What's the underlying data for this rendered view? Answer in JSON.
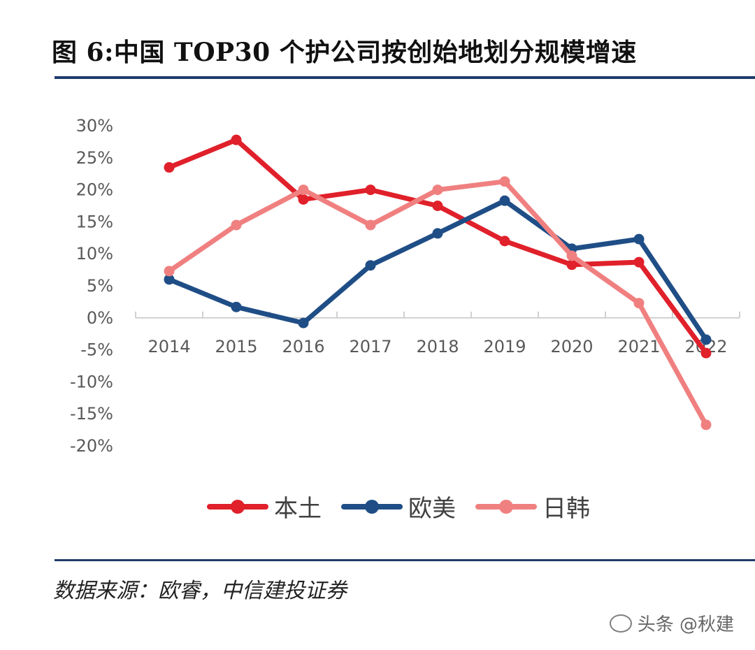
{
  "header": {
    "title": "图 6:中国 TOP30 个护公司按创始地划分规模增速"
  },
  "footer": {
    "source": "数据来源：欧睿，中信建投证券",
    "watermark": "头条 @秋建"
  },
  "colors": {
    "rule": "#1f3c6b",
    "local": "#e0202a",
    "western": "#1f4e86",
    "japan_korea": "#f08080"
  },
  "chart_data": {
    "type": "line",
    "title": "",
    "xlabel": "",
    "ylabel": "",
    "x": [
      "2014",
      "2015",
      "2016",
      "2017",
      "2018",
      "2019",
      "2020",
      "2021",
      "2022"
    ],
    "yticks": [
      "30%",
      "25%",
      "20%",
      "15%",
      "10%",
      "5%",
      "0%",
      "-5%",
      "-10%",
      "-15%",
      "-20%"
    ],
    "ylim": [
      -20,
      30
    ],
    "unit": "%",
    "grid": false,
    "legend_position": "bottom",
    "series": [
      {
        "name": "本土",
        "color": "#e0202a",
        "values": [
          23.5,
          27.8,
          18.5,
          20.0,
          17.5,
          12.0,
          8.3,
          8.7,
          -5.5
        ]
      },
      {
        "name": "欧美",
        "color": "#1f4e86",
        "values": [
          6.0,
          1.7,
          -0.8,
          8.2,
          13.2,
          18.3,
          10.8,
          12.3,
          -3.4
        ]
      },
      {
        "name": "日韩",
        "color": "#f08080",
        "values": [
          7.3,
          14.5,
          20.0,
          14.5,
          20.0,
          21.3,
          9.7,
          2.3,
          -16.7
        ]
      }
    ]
  }
}
